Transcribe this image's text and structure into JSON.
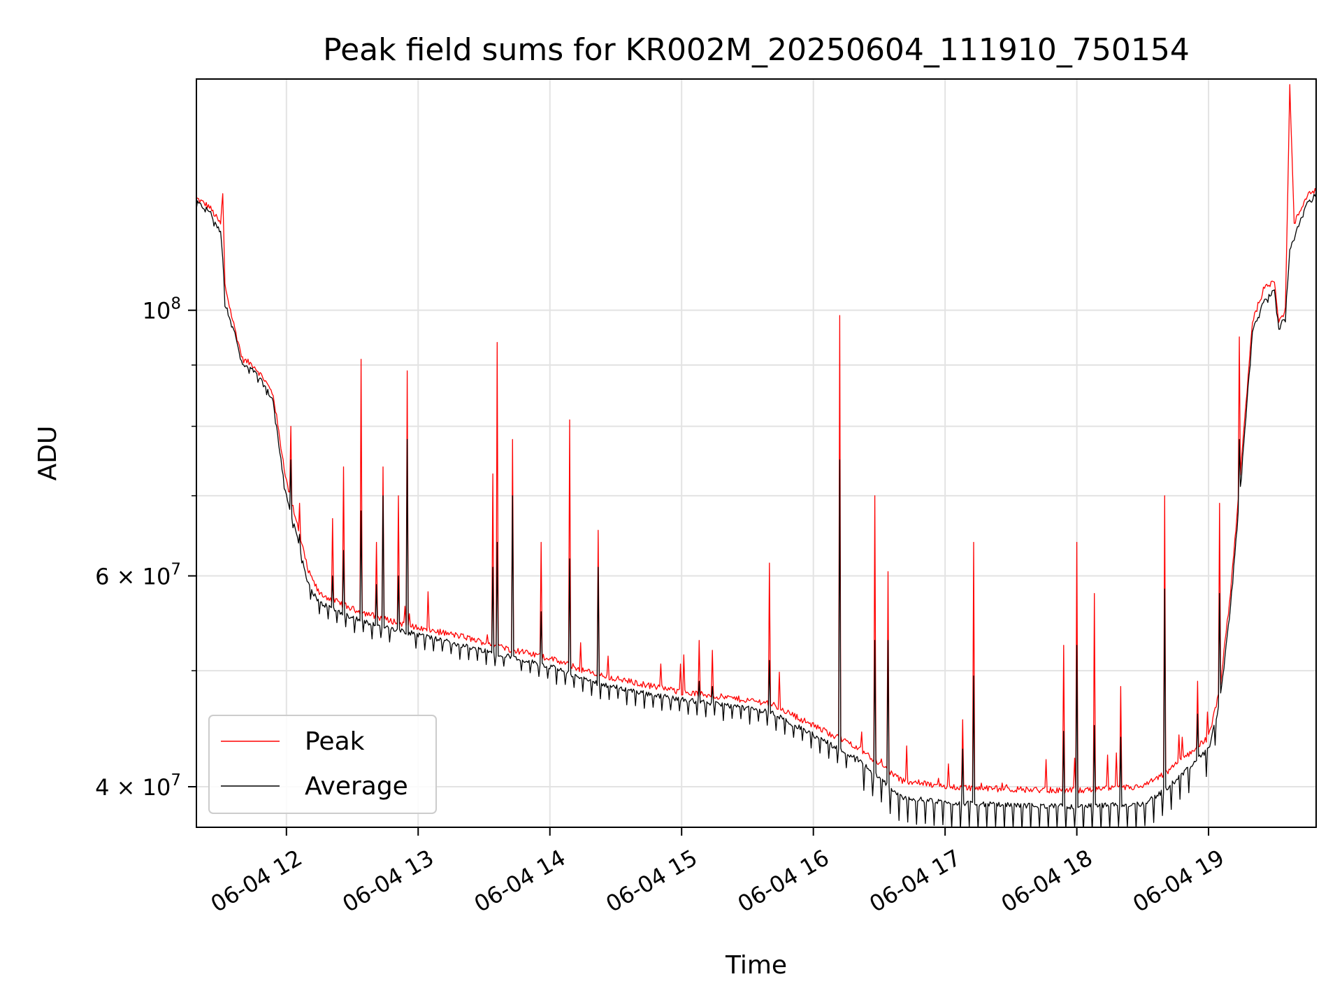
{
  "chart_data": {
    "type": "line",
    "title": "Peak field sums for KR002M_20250604_111910_750154",
    "xlabel": "Time",
    "ylabel": "ADU",
    "x_axis": {
      "kind": "time",
      "range": [
        "2025-06-04T11:19",
        "2025-06-04T19:49"
      ],
      "ticks": [
        {
          "value": "2025-06-04T12:00",
          "label": "06-04 12"
        },
        {
          "value": "2025-06-04T13:00",
          "label": "06-04 13"
        },
        {
          "value": "2025-06-04T14:00",
          "label": "06-04 14"
        },
        {
          "value": "2025-06-04T15:00",
          "label": "06-04 15"
        },
        {
          "value": "2025-06-04T16:00",
          "label": "06-04 16"
        },
        {
          "value": "2025-06-04T17:00",
          "label": "06-04 17"
        },
        {
          "value": "2025-06-04T18:00",
          "label": "06-04 18"
        },
        {
          "value": "2025-06-04T19:00",
          "label": "06-04 19"
        }
      ]
    },
    "y_axis": {
      "scale": "log",
      "range": [
        37000000,
        156000000
      ],
      "major_ticks": [
        {
          "value": 40000000,
          "mantissa": "4",
          "exp": "7"
        },
        {
          "value": 60000000,
          "mantissa": "6",
          "exp": "7"
        },
        {
          "value": 100000000,
          "mantissa": "",
          "exp": "8"
        }
      ],
      "minor_ticks": [
        50000000,
        70000000,
        80000000,
        90000000
      ]
    },
    "grid": true,
    "legend": {
      "position": "lower-left"
    },
    "series": [
      {
        "name": "Peak",
        "color": "#ff0000",
        "points": [
          [
            "2025-06-04T11:19",
            124000000
          ],
          [
            "2025-06-04T11:25",
            122000000
          ],
          [
            "2025-06-04T11:30",
            118000000
          ],
          [
            "2025-06-04T11:31",
            125000000
          ],
          [
            "2025-06-04T11:32",
            105000000
          ],
          [
            "2025-06-04T11:35",
            99000000
          ],
          [
            "2025-06-04T11:40",
            91000000
          ],
          [
            "2025-06-04T11:45",
            90000000
          ],
          [
            "2025-06-04T11:50",
            87500000
          ],
          [
            "2025-06-04T11:54",
            85000000
          ],
          [
            "2025-06-04T11:57",
            78000000
          ],
          [
            "2025-06-04T12:00",
            72000000
          ],
          [
            "2025-06-04T12:05",
            66000000
          ],
          [
            "2025-06-04T12:10",
            60500000
          ],
          [
            "2025-06-04T12:15",
            58000000
          ],
          [
            "2025-06-04T12:30",
            56300000
          ],
          [
            "2025-06-04T12:45",
            55200000
          ],
          [
            "2025-06-04T13:00",
            54300000
          ],
          [
            "2025-06-04T13:20",
            53400000
          ],
          [
            "2025-06-04T13:40",
            52200000
          ],
          [
            "2025-06-04T14:00",
            51200000
          ],
          [
            "2025-06-04T14:20",
            49700000
          ],
          [
            "2025-06-04T14:40",
            48800000
          ],
          [
            "2025-06-04T15:00",
            48000000
          ],
          [
            "2025-06-04T15:20",
            47500000
          ],
          [
            "2025-06-04T15:40",
            47000000
          ],
          [
            "2025-06-04T16:00",
            45000000
          ],
          [
            "2025-06-04T16:20",
            43200000
          ],
          [
            "2025-06-04T16:40",
            40500000
          ],
          [
            "2025-06-04T17:00",
            40000000
          ],
          [
            "2025-06-04T17:30",
            39800000
          ],
          [
            "2025-06-04T18:00",
            39700000
          ],
          [
            "2025-06-04T18:30",
            40000000
          ],
          [
            "2025-06-04T18:40",
            41000000
          ],
          [
            "2025-06-04T19:00",
            44000000
          ],
          [
            "2025-06-04T19:05",
            48000000
          ],
          [
            "2025-06-04T19:10",
            58000000
          ],
          [
            "2025-06-04T19:15",
            75000000
          ],
          [
            "2025-06-04T19:20",
            98000000
          ],
          [
            "2025-06-04T19:25",
            104000000
          ],
          [
            "2025-06-04T19:30",
            106000000
          ],
          [
            "2025-06-04T19:32",
            98000000
          ],
          [
            "2025-06-04T19:35",
            100000000
          ],
          [
            "2025-06-04T19:37",
            154000000
          ],
          [
            "2025-06-04T19:39",
            118000000
          ],
          [
            "2025-06-04T19:45",
            125000000
          ],
          [
            "2025-06-04T19:49",
            126000000
          ]
        ]
      },
      {
        "name": "Average",
        "color": "#000000",
        "points": [
          [
            "2025-06-04T11:19",
            123000000
          ],
          [
            "2025-06-04T11:25",
            121000000
          ],
          [
            "2025-06-04T11:30",
            116000000
          ],
          [
            "2025-06-04T11:31",
            112000000
          ],
          [
            "2025-06-04T11:32",
            101000000
          ],
          [
            "2025-06-04T11:35",
            98000000
          ],
          [
            "2025-06-04T11:40",
            90000000
          ],
          [
            "2025-06-04T11:45",
            89000000
          ],
          [
            "2025-06-04T11:50",
            86500000
          ],
          [
            "2025-06-04T11:54",
            84000000
          ],
          [
            "2025-06-04T11:57",
            76000000
          ],
          [
            "2025-06-04T12:00",
            70000000
          ],
          [
            "2025-06-04T12:05",
            64500000
          ],
          [
            "2025-06-04T12:10",
            59000000
          ],
          [
            "2025-06-04T12:15",
            57000000
          ],
          [
            "2025-06-04T12:30",
            55400000
          ],
          [
            "2025-06-04T12:45",
            54300000
          ],
          [
            "2025-06-04T13:00",
            53600000
          ],
          [
            "2025-06-04T13:20",
            52500000
          ],
          [
            "2025-06-04T13:40",
            51500000
          ],
          [
            "2025-06-04T14:00",
            50400000
          ],
          [
            "2025-06-04T14:20",
            48900000
          ],
          [
            "2025-06-04T14:40",
            48000000
          ],
          [
            "2025-06-04T15:00",
            47300000
          ],
          [
            "2025-06-04T15:20",
            46800000
          ],
          [
            "2025-06-04T15:40",
            46200000
          ],
          [
            "2025-06-04T16:00",
            44200000
          ],
          [
            "2025-06-04T16:20",
            42200000
          ],
          [
            "2025-06-04T16:40",
            39200000
          ],
          [
            "2025-06-04T17:00",
            38800000
          ],
          [
            "2025-06-04T17:30",
            38600000
          ],
          [
            "2025-06-04T18:00",
            38500000
          ],
          [
            "2025-06-04T18:30",
            38700000
          ],
          [
            "2025-06-04T18:40",
            39700000
          ],
          [
            "2025-06-04T19:00",
            43000000
          ],
          [
            "2025-06-04T19:05",
            47000000
          ],
          [
            "2025-06-04T19:10",
            56500000
          ],
          [
            "2025-06-04T19:15",
            73000000
          ],
          [
            "2025-06-04T19:20",
            96000000
          ],
          [
            "2025-06-04T19:25",
            102000000
          ],
          [
            "2025-06-04T19:30",
            104000000
          ],
          [
            "2025-06-04T19:32",
            96500000
          ],
          [
            "2025-06-04T19:35",
            99000000
          ],
          [
            "2025-06-04T19:37",
            112000000
          ],
          [
            "2025-06-04T19:39",
            115000000
          ],
          [
            "2025-06-04T19:45",
            123000000
          ],
          [
            "2025-06-04T19:49",
            125000000
          ]
        ]
      }
    ],
    "spikes": [
      {
        "t": "2025-06-04T12:02",
        "peak": 80000000,
        "avg": 75000000
      },
      {
        "t": "2025-06-04T12:06",
        "peak": 69000000,
        "avg": 65000000
      },
      {
        "t": "2025-06-04T12:21",
        "peak": 67000000,
        "avg": 60000000
      },
      {
        "t": "2025-06-04T12:26",
        "peak": 74000000,
        "avg": 63000000
      },
      {
        "t": "2025-06-04T12:34",
        "peak": 91000000,
        "avg": 68000000
      },
      {
        "t": "2025-06-04T12:41",
        "peak": 64000000,
        "avg": 59000000
      },
      {
        "t": "2025-06-04T12:44",
        "peak": 74000000,
        "avg": 70000000
      },
      {
        "t": "2025-06-04T12:51",
        "peak": 70000000,
        "avg": 60000000
      },
      {
        "t": "2025-06-04T12:55",
        "peak": 89000000,
        "avg": 78000000
      },
      {
        "t": "2025-06-04T13:34",
        "peak": 73000000,
        "avg": 61000000
      },
      {
        "t": "2025-06-04T13:36",
        "peak": 94000000,
        "avg": 64000000
      },
      {
        "t": "2025-06-04T13:43",
        "peak": 78000000,
        "avg": 70000000
      },
      {
        "t": "2025-06-04T13:56",
        "peak": 64000000,
        "avg": 56000000
      },
      {
        "t": "2025-06-04T14:09",
        "peak": 81000000,
        "avg": 62000000
      },
      {
        "t": "2025-06-04T14:22",
        "peak": 65500000,
        "avg": 61000000
      },
      {
        "t": "2025-06-04T15:08",
        "peak": 53000000,
        "avg": 49000000
      },
      {
        "t": "2025-06-04T15:14",
        "peak": 52000000,
        "avg": 48500000
      },
      {
        "t": "2025-06-04T15:40",
        "peak": 61500000,
        "avg": 51000000
      },
      {
        "t": "2025-06-04T16:12",
        "peak": 99000000,
        "avg": 75000000
      },
      {
        "t": "2025-06-04T16:28",
        "peak": 70000000,
        "avg": 53000000
      },
      {
        "t": "2025-06-04T16:34",
        "peak": 60500000,
        "avg": 53000000
      },
      {
        "t": "2025-06-04T17:08",
        "peak": 45500000,
        "avg": 43000000
      },
      {
        "t": "2025-06-04T17:13",
        "peak": 64000000,
        "avg": 49500000
      },
      {
        "t": "2025-06-04T17:54",
        "peak": 52500000,
        "avg": 44500000
      },
      {
        "t": "2025-06-04T18:00",
        "peak": 64000000,
        "avg": 52500000
      },
      {
        "t": "2025-06-04T18:08",
        "peak": 58000000,
        "avg": 45000000
      },
      {
        "t": "2025-06-04T18:20",
        "peak": 48500000,
        "avg": 44000000
      },
      {
        "t": "2025-06-04T18:40",
        "peak": 70000000,
        "avg": 58500000
      },
      {
        "t": "2025-06-04T18:55",
        "peak": 49000000,
        "avg": 46000000
      },
      {
        "t": "2025-06-04T19:05",
        "peak": 69000000,
        "avg": 58000000
      },
      {
        "t": "2025-06-04T19:14",
        "peak": 95000000,
        "avg": 78000000
      }
    ]
  }
}
